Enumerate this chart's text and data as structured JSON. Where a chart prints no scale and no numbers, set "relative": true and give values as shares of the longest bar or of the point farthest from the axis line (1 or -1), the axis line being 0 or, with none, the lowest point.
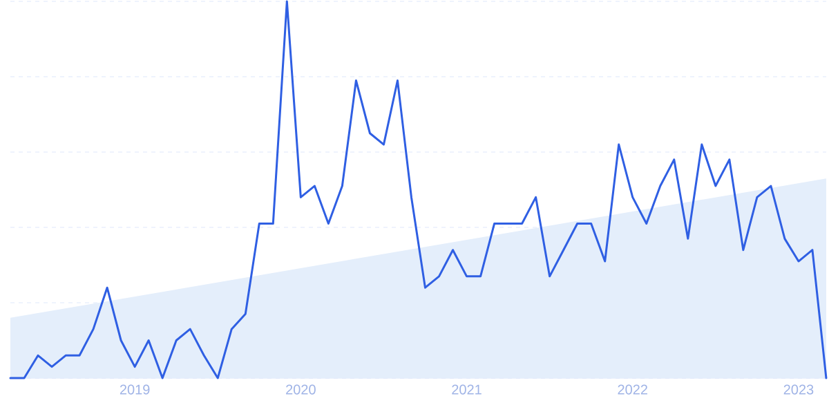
{
  "chart_data": {
    "type": "line",
    "relative": true,
    "grid": "y",
    "x": [
      "2018-04",
      "2018-05",
      "2018-06",
      "2018-07",
      "2018-08",
      "2018-09",
      "2018-10",
      "2018-11",
      "2018-12",
      "2019-01",
      "2019-02",
      "2019-03",
      "2019-04",
      "2019-05",
      "2019-06",
      "2019-07",
      "2019-08",
      "2019-09",
      "2019-10",
      "2019-11",
      "2019-12",
      "2020-01",
      "2020-02",
      "2020-03",
      "2020-04",
      "2020-05",
      "2020-06",
      "2020-07",
      "2020-08",
      "2020-09",
      "2020-10",
      "2020-11",
      "2020-12",
      "2021-01",
      "2021-02",
      "2021-03",
      "2021-04",
      "2021-05",
      "2021-06",
      "2021-07",
      "2021-08",
      "2021-09",
      "2021-10",
      "2021-11",
      "2021-12",
      "2022-01",
      "2022-02",
      "2022-03",
      "2022-04",
      "2022-05",
      "2022-06",
      "2022-07",
      "2022-08",
      "2022-09",
      "2022-10",
      "2022-11",
      "2022-12",
      "2023-01",
      "2023-02",
      "2023-03"
    ],
    "xlim": [
      "2018-04",
      "2023-03"
    ],
    "xticks": [
      {
        "value": "2019-01",
        "label": "2019"
      },
      {
        "value": "2020-01",
        "label": "2020"
      },
      {
        "value": "2021-01",
        "label": "2021"
      },
      {
        "value": "2022-01",
        "label": "2022"
      },
      {
        "value": "2023-01",
        "label": "2023"
      }
    ],
    "series": [
      {
        "type": "area",
        "color": "#e4eefb",
        "x": [
          "2018-04",
          "2023-03"
        ],
        "values": [
          0.16,
          0.53
        ]
      },
      {
        "type": "line",
        "color": "#2f5fe3",
        "values": [
          0,
          0,
          0.06,
          0.03,
          0.06,
          0.06,
          0.13,
          0.24,
          0.1,
          0.03,
          0.1,
          0,
          0.1,
          0.13,
          0.06,
          0,
          0.13,
          0.17,
          0.41,
          0.41,
          1,
          0.48,
          0.51,
          0.41,
          0.51,
          0.79,
          0.65,
          0.62,
          0.79,
          0.48,
          0.24,
          0.27,
          0.34,
          0.27,
          0.27,
          0.41,
          0.41,
          0.41,
          0.48,
          0.27,
          0.34,
          0.41,
          0.41,
          0.31,
          0.62,
          0.48,
          0.41,
          0.51,
          0.58,
          0.37,
          0.62,
          0.51,
          0.58,
          0.34,
          0.48,
          0.51,
          0.37,
          0.31,
          0.34,
          0
        ]
      }
    ]
  }
}
